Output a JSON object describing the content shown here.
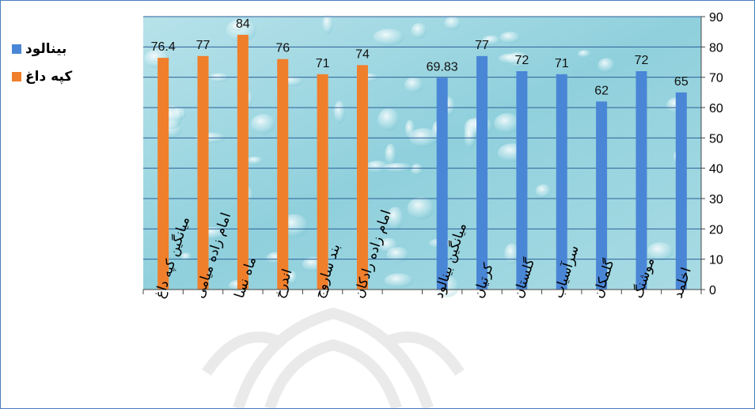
{
  "chart_data": {
    "type": "bar",
    "categories": [
      "میانگین کپه داغ",
      "امام زاده میامی",
      "ماه نسا",
      "اندرخ",
      "بند ساروج",
      "امام زاده رادکان",
      "",
      "میانگین بینالود",
      "کرتیان",
      "گلستان",
      "سرآسیاب",
      "گلمکان",
      "موشنگ",
      "اخلمد"
    ],
    "series": [
      {
        "name": "کپه داغ",
        "color": "#f07f2c",
        "values": [
          76.4,
          77,
          84,
          76,
          71,
          74,
          null,
          null,
          null,
          null,
          null,
          null,
          null,
          null
        ]
      },
      {
        "name": "بینالود",
        "color": "#4a86d6",
        "values": [
          null,
          null,
          null,
          null,
          null,
          null,
          null,
          69.83,
          77,
          72,
          71,
          62,
          72,
          65
        ]
      }
    ],
    "data_labels": [
      "76.4",
      "77",
      "84",
      "76",
      "71",
      "74",
      "",
      "69.83",
      "77",
      "72",
      "71",
      "62",
      "72",
      "65"
    ],
    "yticks": [
      "0",
      "10",
      "20",
      "30",
      "40",
      "50",
      "60",
      "70",
      "80",
      "90"
    ],
    "ylim": [
      0,
      90
    ],
    "yaxis_side": "right",
    "grid": true,
    "legend_position": "top-left",
    "plot_background": "water-drops-teal"
  }
}
